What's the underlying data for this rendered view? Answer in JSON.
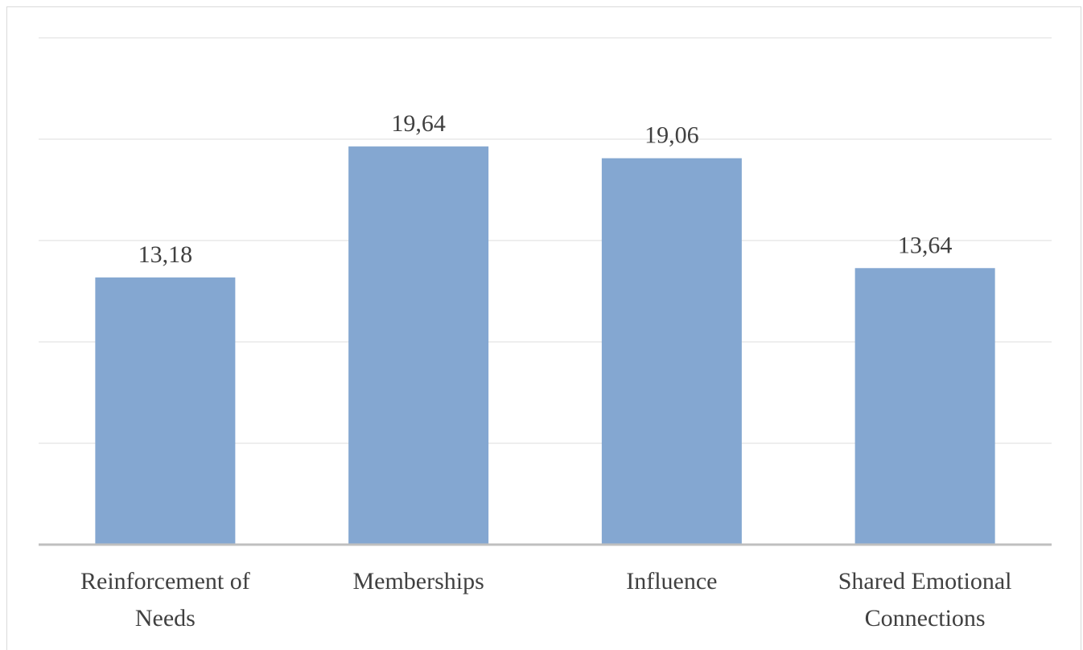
{
  "chart_data": {
    "type": "bar",
    "categories": [
      [
        "Reinforcement of",
        "Needs"
      ],
      [
        "Memberships"
      ],
      [
        "Influence"
      ],
      [
        "Shared Emotional",
        "Connections"
      ]
    ],
    "values": [
      13.18,
      19.64,
      19.06,
      13.64
    ],
    "value_labels": [
      "13,18",
      "19,64",
      "19,06",
      "13,64"
    ],
    "title": "",
    "xlabel": "",
    "ylabel": "",
    "ylim": [
      0,
      25
    ],
    "ytick_step": 5,
    "show_y_tick_labels": false,
    "grid": true,
    "legend": "none",
    "bar_color": "#84a7d1",
    "grid_color": "#eeeeee",
    "axis_color": "#bfbfbf",
    "text_color": "#404040"
  }
}
